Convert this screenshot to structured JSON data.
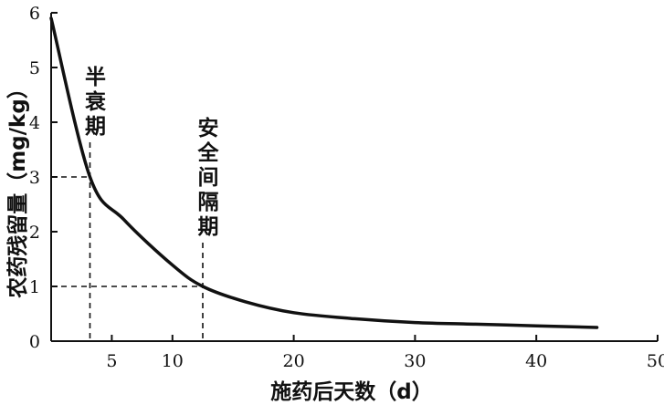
{
  "chart_data": {
    "type": "line",
    "xlabel": "施药后天数（d）",
    "ylabel": "农药残留量（mg/kg）",
    "xlim": [
      0,
      50
    ],
    "ylim": [
      0,
      6
    ],
    "x_ticks": [
      5,
      10,
      20,
      30,
      40,
      50
    ],
    "y_ticks": [
      0,
      1,
      2,
      3,
      4,
      5,
      6
    ],
    "grid": false,
    "series": [
      {
        "x": [
          0,
          3.2,
          6,
          10,
          12.5,
          16,
          20,
          25,
          30,
          35,
          40,
          45
        ],
        "y": [
          5.9,
          3.0,
          2.22,
          1.39,
          1.0,
          0.72,
          0.52,
          0.41,
          0.34,
          0.31,
          0.28,
          0.25
        ]
      }
    ],
    "reference_lines": [
      {
        "x": 3.2,
        "y": 3
      },
      {
        "x": 12.5,
        "y": 1
      }
    ],
    "annotations": [
      {
        "text": "半衰期",
        "x": 3.2
      },
      {
        "text": "安全间隔期",
        "x": 12.5
      }
    ]
  }
}
